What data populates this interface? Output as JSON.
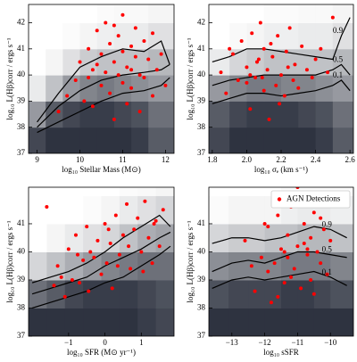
{
  "chart_data": [
    {
      "type": "scatter",
      "xlabel": "log₁₀ Stellar Mass (M⊙)",
      "ylabel": "log₁₀ L(Hβ)corr / ergs s⁻¹",
      "xlim": [
        8.8,
        12.2
      ],
      "ylim": [
        37,
        42.7
      ],
      "xticks": [
        9,
        10,
        11,
        12
      ],
      "yticks": [
        37,
        38,
        39,
        40,
        41,
        42
      ],
      "heatmap": {
        "xbins": [
          8.8,
          9.2,
          9.6,
          10,
          10.4,
          10.8,
          11.2,
          11.6,
          12.2
        ],
        "ybins": [
          37,
          38,
          39,
          40,
          41,
          42,
          42.7
        ],
        "colormap": [
          "#ffffff",
          "#2e3340"
        ],
        "values": [
          [
            0.9,
            1,
            1,
            1,
            1,
            1,
            0.95,
            0.8
          ],
          [
            0.5,
            0.8,
            0.9,
            0.95,
            0.95,
            0.9,
            0.85,
            0.7
          ],
          [
            0.1,
            0.3,
            0.5,
            0.6,
            0.65,
            0.6,
            0.55,
            0.5
          ],
          [
            0,
            0.05,
            0.15,
            0.25,
            0.3,
            0.3,
            0.3,
            0.35
          ],
          [
            0,
            0,
            0.02,
            0.05,
            0.08,
            0.1,
            0.1,
            0.15
          ],
          [
            0,
            0,
            0,
            0,
            0.02,
            0.03,
            0.03,
            0.05
          ]
        ]
      },
      "contours": [
        {
          "color": "#000000",
          "x": [
            9,
            9.5,
            10,
            10.5,
            11,
            11.5,
            11.9,
            12.1
          ],
          "values": [
            38.2,
            39.3,
            40.3,
            40.7,
            41,
            40.9,
            41.3,
            40.4
          ]
        },
        {
          "color": "#000000",
          "x": [
            9,
            9.5,
            10,
            10.5,
            11,
            11.5,
            11.9,
            12.1
          ],
          "values": [
            38,
            38.8,
            39.4,
            39.8,
            40,
            40.1,
            40.2,
            40.4
          ]
        },
        {
          "color": "#000000",
          "x": [
            9,
            9.5,
            10,
            10.5,
            11,
            11.5,
            11.9,
            12.1
          ],
          "values": [
            37.8,
            38.2,
            38.6,
            39,
            39.3,
            39.4,
            39.6,
            39.9
          ]
        }
      ],
      "series": [
        {
          "color": "#ff0000",
          "x": [
            9.7,
            9.9,
            10.0,
            10.1,
            10.2,
            10.3,
            10.3,
            10.4,
            10.5,
            10.5,
            10.6,
            10.6,
            10.7,
            10.7,
            10.8,
            10.8,
            10.9,
            10.9,
            11.0,
            11.0,
            11.0,
            11.1,
            11.1,
            11.2,
            11.2,
            11.3,
            11.3,
            11.4,
            11.4,
            11.5,
            11.5,
            11.6,
            11.7,
            11.7,
            11.8,
            11.9,
            12.0,
            10.2,
            10.8,
            11.2,
            9.5,
            10.4
          ],
          "values": [
            39.2,
            39.8,
            40.5,
            39.0,
            41.0,
            40.2,
            38.8,
            41.7,
            39.6,
            40.8,
            40.1,
            42.0,
            39.3,
            41.2,
            40.5,
            38.3,
            40.0,
            41.5,
            39.7,
            40.9,
            42.3,
            40.3,
            38.9,
            41.1,
            39.5,
            40.7,
            41.8,
            40.0,
            38.6,
            41.3,
            39.9,
            40.6,
            39.2,
            41.6,
            40.2,
            40.8,
            39.6,
            39.9,
            41.9,
            40.2,
            38.6,
            40.4
          ]
        }
      ]
    },
    {
      "type": "scatter",
      "xlabel": "log₁₀ σₑ (km s⁻¹)",
      "ylabel": "log₁₀ L(Hβ)corr / ergs s⁻¹",
      "xlim": [
        1.78,
        2.62
      ],
      "ylim": [
        37,
        42.7
      ],
      "xticks": [
        1.8,
        {
          "value": 2,
          "label": "2.0"
        },
        2.2,
        2.4,
        2.6
      ],
      "yticks": [
        37,
        38,
        39,
        40,
        41,
        42
      ],
      "heatmap": {
        "xbins": [
          1.78,
          1.9,
          2.0,
          2.1,
          2.2,
          2.3,
          2.4,
          2.5,
          2.62
        ],
        "ybins": [
          37,
          38,
          39,
          40,
          41,
          42,
          42.7
        ],
        "colormap": [
          "#ffffff",
          "#2e3340"
        ],
        "values": [
          [
            0.9,
            1,
            1,
            1,
            1,
            1,
            0.95,
            0.8
          ],
          [
            0.8,
            0.9,
            0.95,
            0.95,
            0.95,
            0.9,
            0.85,
            0.7
          ],
          [
            0.5,
            0.6,
            0.65,
            0.65,
            0.6,
            0.6,
            0.55,
            0.5
          ],
          [
            0.1,
            0.2,
            0.25,
            0.3,
            0.3,
            0.3,
            0.3,
            0.35
          ],
          [
            0,
            0.03,
            0.05,
            0.08,
            0.08,
            0.1,
            0.1,
            0.15
          ],
          [
            0,
            0,
            0,
            0.02,
            0.02,
            0.03,
            0.03,
            0.05
          ]
        ]
      },
      "contours": [
        {
          "color": "#000000",
          "label": "0.9",
          "x": [
            1.8,
            1.9,
            2.0,
            2.1,
            2.2,
            2.3,
            2.4,
            2.5,
            2.55,
            2.6
          ],
          "values": [
            40.5,
            40.7,
            41.0,
            41.0,
            40.9,
            40.8,
            40.7,
            40.6,
            41.5,
            42.2
          ]
        },
        {
          "color": "#000000",
          "label": "0.5",
          "x": [
            1.8,
            1.9,
            2.0,
            2.1,
            2.2,
            2.3,
            2.4,
            2.5,
            2.55,
            2.6
          ],
          "values": [
            39.6,
            39.8,
            39.9,
            40.0,
            40.0,
            40.0,
            40.0,
            40.2,
            40.4,
            40.0
          ]
        },
        {
          "color": "#000000",
          "label": "0.1",
          "x": [
            1.8,
            1.9,
            2.0,
            2.1,
            2.2,
            2.3,
            2.4,
            2.5,
            2.55,
            2.6
          ],
          "values": [
            38.9,
            39.1,
            39.3,
            39.3,
            39.2,
            39.3,
            39.4,
            39.6,
            39.8,
            39.4
          ]
        }
      ],
      "series": [
        {
          "color": "#ff0000",
          "x": [
            1.85,
            1.88,
            1.92,
            1.95,
            1.97,
            2.0,
            2.02,
            2.03,
            2.05,
            2.07,
            2.08,
            2.1,
            2.1,
            2.12,
            2.13,
            2.15,
            2.17,
            2.18,
            2.2,
            2.22,
            2.23,
            2.25,
            2.27,
            2.28,
            2.3,
            2.32,
            2.35,
            2.38,
            2.4,
            2.43,
            2.47,
            2.5,
            1.9,
            2.0,
            2.06,
            2.14,
            2.24,
            2.02,
            2.09,
            2.19
          ],
          "values": [
            40.1,
            39.3,
            40.8,
            39.8,
            41.3,
            40.3,
            38.7,
            41.6,
            39.9,
            40.6,
            42.0,
            39.4,
            41.0,
            40.2,
            38.3,
            40.7,
            39.6,
            41.5,
            40.0,
            39.2,
            40.9,
            41.8,
            39.8,
            40.4,
            39.5,
            41.1,
            40.2,
            39.9,
            40.6,
            41.0,
            40.1,
            42.2,
            41.0,
            39.7,
            40.5,
            41.2,
            40.3,
            40.0,
            39.9,
            38.9
          ]
        }
      ]
    },
    {
      "type": "scatter",
      "xlabel": "log₁₀ SFR (M⊙ yr⁻¹)",
      "ylabel": "log₁₀ L(Hβ)corr / ergs s⁻¹",
      "xlim": [
        -2.1,
        1.9
      ],
      "ylim": [
        37,
        42.3
      ],
      "xticks": [
        {
          "value": -1,
          "label": "−1"
        },
        0,
        1
      ],
      "yticks": [
        37,
        38,
        39,
        40,
        41
      ],
      "heatmap": {
        "xbins": [
          -2.1,
          -1.6,
          -1.1,
          -0.6,
          -0.1,
          0.4,
          0.9,
          1.4,
          1.9
        ],
        "ybins": [
          37,
          38,
          39,
          40,
          41,
          42,
          42.3
        ],
        "colormap": [
          "#ffffff",
          "#2e3340"
        ],
        "values": [
          [
            1,
            1,
            1,
            1,
            1,
            1,
            0.95,
            0.9
          ],
          [
            0.7,
            0.8,
            0.9,
            0.95,
            0.95,
            0.95,
            0.9,
            0.85
          ],
          [
            0.2,
            0.3,
            0.4,
            0.5,
            0.6,
            0.65,
            0.7,
            0.7
          ],
          [
            0,
            0.05,
            0.1,
            0.15,
            0.2,
            0.3,
            0.4,
            0.45
          ],
          [
            0,
            0,
            0,
            0.02,
            0.05,
            0.1,
            0.15,
            0.2
          ],
          [
            0,
            0,
            0,
            0,
            0,
            0.02,
            0.03,
            0.05
          ]
        ]
      },
      "contours": [
        {
          "color": "#000000",
          "x": [
            -2,
            -1.5,
            -1,
            -0.5,
            0,
            0.5,
            1,
            1.5,
            1.8
          ],
          "values": [
            38.9,
            39.1,
            39.3,
            39.6,
            40.0,
            40.5,
            40.9,
            41.3,
            40.9
          ]
        },
        {
          "color": "#000000",
          "x": [
            -2,
            -1.5,
            -1,
            -0.5,
            0,
            0.5,
            1,
            1.5,
            1.8
          ],
          "values": [
            38.5,
            38.7,
            38.9,
            39.1,
            39.5,
            39.8,
            40.1,
            40.5,
            40.7
          ]
        },
        {
          "color": "#000000",
          "x": [
            -2,
            -1.5,
            -1,
            -0.5,
            0,
            0.5,
            1,
            1.5,
            1.8
          ],
          "values": [
            38.0,
            38.2,
            38.4,
            38.6,
            38.9,
            39.1,
            39.5,
            39.9,
            40.2
          ]
        }
      ],
      "series": [
        {
          "color": "#ff0000",
          "x": [
            -1.6,
            -1.4,
            -1.3,
            -1.1,
            -1.0,
            -0.9,
            -0.8,
            -0.7,
            -0.6,
            -0.5,
            -0.45,
            -0.3,
            -0.2,
            -0.1,
            0.0,
            0.05,
            0.15,
            0.2,
            0.3,
            0.4,
            0.5,
            0.6,
            0.7,
            0.8,
            0.9,
            1.0,
            1.1,
            1.2,
            1.3,
            1.4,
            1.5,
            1.6,
            -1.2,
            -0.4,
            0.1,
            0.65,
            1.05,
            -0.75,
            0.35,
            1.35
          ],
          "values": [
            41.6,
            38.8,
            39.5,
            38.4,
            40.1,
            39.0,
            40.6,
            38.9,
            39.7,
            40.9,
            38.6,
            39.8,
            40.4,
            39.2,
            41.0,
            39.6,
            40.3,
            38.7,
            41.3,
            39.9,
            40.6,
            41.7,
            39.4,
            40.8,
            41.2,
            40.0,
            41.8,
            40.5,
            39.6,
            41.1,
            40.2,
            41.5,
            39.1,
            40.0,
            40.8,
            40.2,
            39.3,
            39.9,
            39.5,
            41.0
          ]
        }
      ]
    },
    {
      "type": "scatter",
      "xlabel": "log₁₀ sSFR",
      "ylabel": "log₁₀ L(Hβ)corr / ergs s⁻¹",
      "xlim": [
        -13.7,
        -9.3
      ],
      "ylim": [
        37,
        42.3
      ],
      "xticks": [
        {
          "value": -13,
          "label": "−13"
        },
        {
          "value": -12,
          "label": "−12"
        },
        {
          "value": -11,
          "label": "−11"
        },
        {
          "value": -10,
          "label": "−10"
        }
      ],
      "yticks": [
        37,
        38,
        39,
        40,
        41
      ],
      "legend": "upper right",
      "heatmap": {
        "xbins": [
          -13.7,
          -13.1,
          -12.5,
          -12.0,
          -11.5,
          -11.0,
          -10.5,
          -10.0,
          -9.3
        ],
        "ybins": [
          37,
          38,
          39,
          40,
          41,
          42,
          42.3
        ],
        "colormap": [
          "#ffffff",
          "#2e3340"
        ],
        "values": [
          [
            1,
            1,
            1,
            1,
            1,
            1,
            1,
            1
          ],
          [
            0.85,
            0.9,
            0.9,
            0.9,
            0.95,
            0.95,
            0.9,
            0.85
          ],
          [
            0.55,
            0.6,
            0.6,
            0.6,
            0.65,
            0.65,
            0.65,
            0.6
          ],
          [
            0.2,
            0.25,
            0.25,
            0.3,
            0.3,
            0.35,
            0.35,
            0.3
          ],
          [
            0.02,
            0.05,
            0.05,
            0.05,
            0.08,
            0.1,
            0.1,
            0.08
          ],
          [
            0,
            0,
            0,
            0,
            0.02,
            0.02,
            0.02,
            0.02
          ]
        ]
      },
      "contours": [
        {
          "color": "#000000",
          "label": "0.9",
          "x": [
            -13.6,
            -13,
            -12.5,
            -12,
            -11.5,
            -11,
            -10.5,
            -10,
            -9.5
          ],
          "values": [
            40.3,
            40.5,
            40.5,
            40.4,
            40.5,
            40.7,
            40.9,
            40.8,
            40.5
          ]
        },
        {
          "color": "#000000",
          "label": "0.5",
          "x": [
            -13.6,
            -13,
            -12.5,
            -12,
            -11.5,
            -11,
            -10.5,
            -10,
            -9.5
          ],
          "values": [
            39.3,
            39.6,
            39.7,
            39.6,
            39.8,
            40.0,
            40.0,
            39.9,
            39.8
          ]
        },
        {
          "color": "#000000",
          "label": "0.1",
          "x": [
            -13.6,
            -13,
            -12.5,
            -12,
            -11.5,
            -11,
            -10.5,
            -10,
            -9.5
          ],
          "values": [
            38.7,
            39.0,
            39.1,
            39.0,
            39.1,
            39.2,
            39.3,
            39.1,
            38.8
          ]
        }
      ],
      "series": [
        {
          "name": "AGN Detections",
          "color": "#ff0000",
          "x": [
            -12.6,
            -12.3,
            -12.1,
            -11.9,
            -11.8,
            -11.7,
            -11.6,
            -11.5,
            -11.4,
            -11.3,
            -11.2,
            -11.1,
            -11.0,
            -11.0,
            -10.9,
            -10.8,
            -10.7,
            -10.6,
            -10.5,
            -10.5,
            -10.4,
            -10.3,
            -10.2,
            -10.1,
            -10.0,
            -11.9,
            -11.6,
            -11.3,
            -11.1,
            -10.8,
            -10.6,
            -10.9,
            -11.4,
            -12.0,
            -10.7,
            -10.3,
            -11.2,
            -12.4
          ],
          "values": [
            40.4,
            38.6,
            39.8,
            40.9,
            38.2,
            39.6,
            41.3,
            40.1,
            38.9,
            40.6,
            41.6,
            39.4,
            40.2,
            42.3,
            38.7,
            41.0,
            39.9,
            40.5,
            41.4,
            38.5,
            40.0,
            39.6,
            40.8,
            39.2,
            40.4,
            39.3,
            38.4,
            39.8,
            41.8,
            40.3,
            39.0,
            41.9,
            40.0,
            41.0,
            40.1,
            41.2,
            39.1,
            39.5
          ]
        }
      ]
    }
  ]
}
